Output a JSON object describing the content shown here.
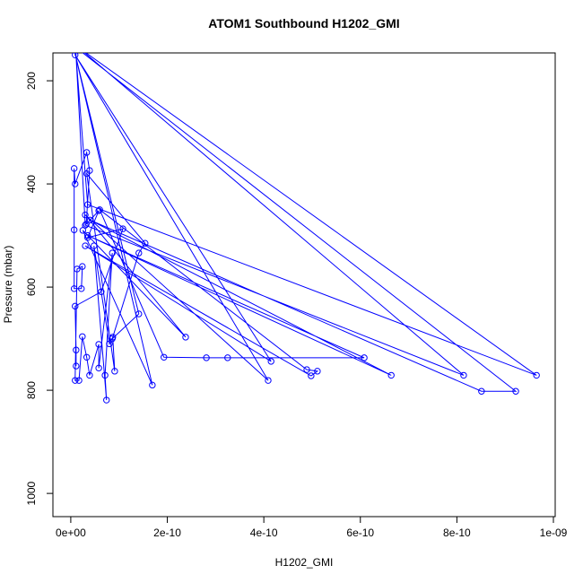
{
  "chart_data": {
    "type": "line",
    "title": "ATOM1 Southbound H1202_GMI",
    "x_label": "H1202_GMI",
    "y_label": "Pressure (mbar)",
    "series": [
      {
        "name": "H1202_GMI",
        "color": "#0000ff",
        "markers": true,
        "x": [
          8e-12,
          9.65e-10,
          3.5e-11,
          9e-12,
          8.14e-10,
          3e-11,
          1e-11,
          9.22e-10,
          8.51e-10,
          4e-11,
          6.64e-10,
          3.5e-11,
          6.08e-10,
          3.25e-10,
          2.81e-10,
          1.93e-10,
          6e-11,
          4.89e-10,
          5.11e-10,
          4.98e-10,
          3e-11,
          4.15e-10,
          9e-12,
          4.09e-10,
          3e-11,
          2.38e-10,
          2.5e-11,
          1.69e-10,
          7e-12,
          1.41e-10,
          8.6e-11,
          1.41e-10,
          1.54e-10,
          3.3e-11,
          9.1e-11,
          8.7e-11,
          8e-11,
          4.8e-11,
          7.4e-11,
          7.1e-11,
          8.6e-11,
          5.8e-11,
          5.8e-11,
          3.9e-11,
          3.3e-11,
          2.4e-11,
          1.7e-11,
          9e-12,
          1.3e-11,
          2.4e-11,
          2.2e-11,
          7e-12,
          7e-12,
          7e-12,
          9e-12,
          3.3e-11,
          3.9e-11,
          3.2e-11,
          5.8e-11,
          3.5e-11,
          1.08e-10,
          6.3e-11,
          9e-12,
          1.1e-11,
          1.1e-11
        ],
        "values": [
          130,
          771,
          440,
          130,
          771,
          480,
          135,
          802,
          802,
          470,
          771,
          500,
          737,
          737,
          737,
          736,
          450,
          760,
          763,
          772,
          520,
          744,
          150,
          781,
          460,
          697,
          490,
          790,
          140,
          652,
          700,
          534,
          515,
          380,
          763,
          697,
          710,
          520,
          819,
          771,
          534,
          757,
          711,
          771,
          736,
          696,
          781,
          781,
          565,
          560,
          603,
          603,
          489,
          370,
          400,
          339,
          374,
          478,
          452,
          504,
          487,
          609,
          637,
          722,
          753
        ]
      }
    ],
    "xlim": [
      -3.7e-11,
      1.0037e-09
    ],
    "ylim": [
      1045,
      146
    ],
    "xticks": [
      {
        "value": 0,
        "label": "0e+00"
      },
      {
        "value": 2e-10,
        "label": "2e-10"
      },
      {
        "value": 4e-10,
        "label": "4e-10"
      },
      {
        "value": 6e-10,
        "label": "6e-10"
      },
      {
        "value": 8e-10,
        "label": "8e-10"
      },
      {
        "value": 1e-09,
        "label": "1e-09"
      }
    ],
    "yticks": [
      200,
      400,
      600,
      800,
      1000
    ]
  }
}
